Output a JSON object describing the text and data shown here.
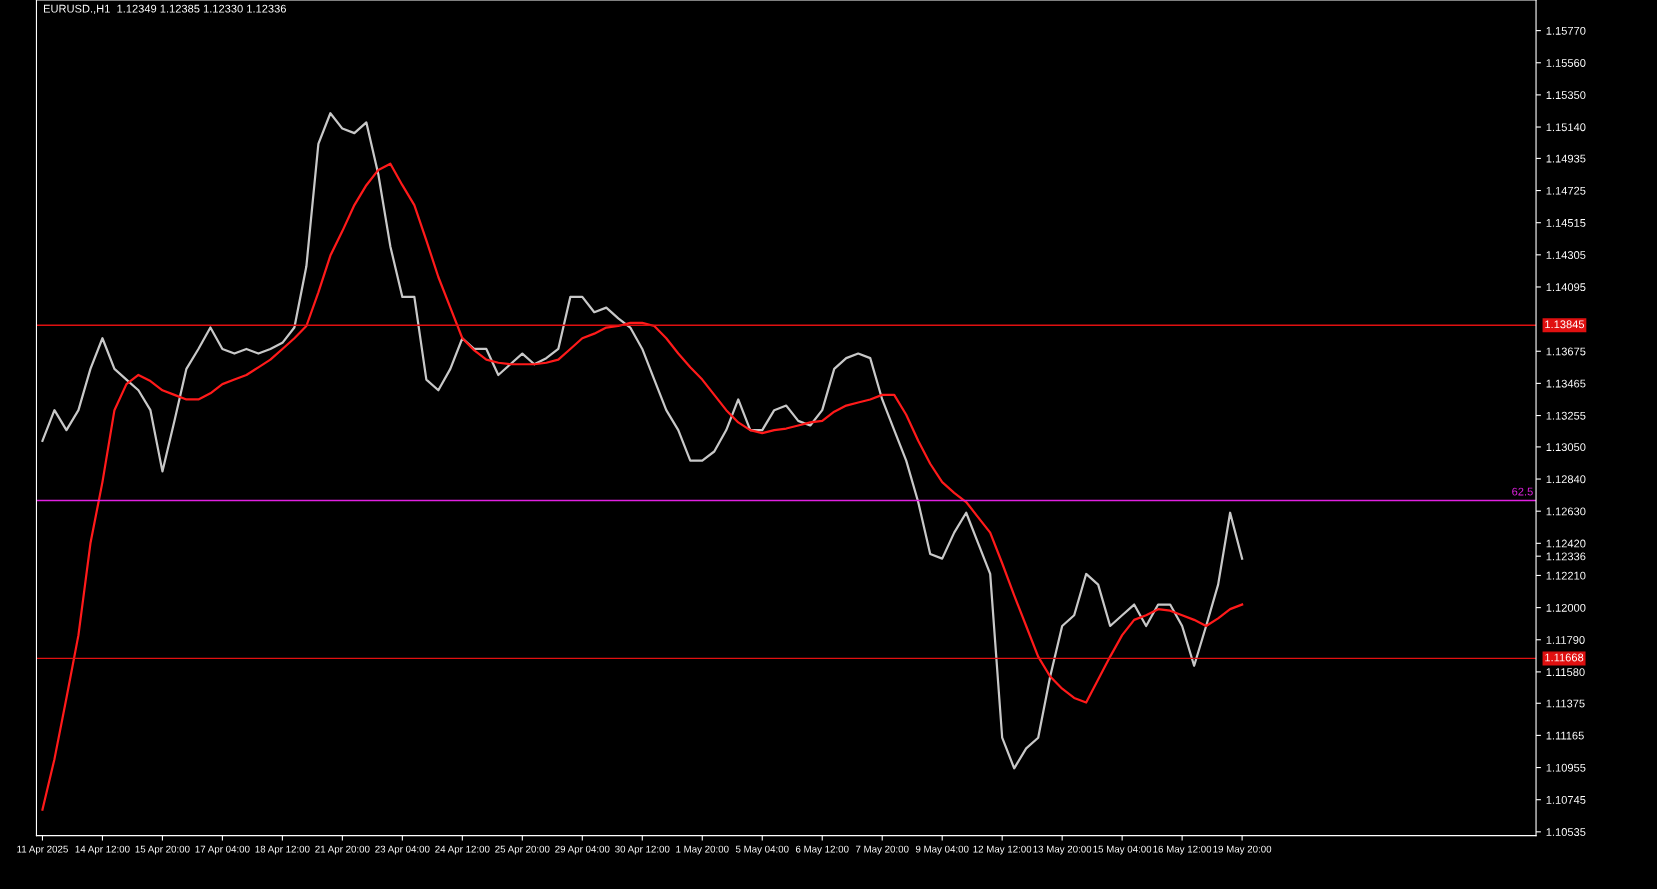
{
  "chart_data": {
    "type": "line",
    "title": "EURUSD.,H1  1.12349 1.12385 1.12330 1.12336",
    "categories": [
      "11 Apr 2025",
      null,
      null,
      null,
      null,
      "14 Apr 12:00",
      null,
      null,
      null,
      null,
      "15 Apr 20:00",
      null,
      null,
      null,
      null,
      "17 Apr 04:00",
      null,
      null,
      null,
      null,
      "18 Apr 12:00",
      null,
      null,
      null,
      null,
      "21 Apr 20:00",
      null,
      null,
      null,
      null,
      "23 Apr 04:00",
      null,
      null,
      null,
      null,
      "24 Apr 12:00",
      null,
      null,
      null,
      null,
      "25 Apr 20:00",
      null,
      null,
      null,
      null,
      "29 Apr 04:00",
      null,
      null,
      null,
      null,
      "30 Apr 12:00",
      null,
      null,
      null,
      null,
      "1 May 20:00",
      null,
      null,
      null,
      null,
      "5 May 04:00",
      null,
      null,
      null,
      null,
      "6 May 12:00",
      null,
      null,
      null,
      null,
      "7 May 20:00",
      null,
      null,
      null,
      null,
      "9 May 04:00",
      null,
      null,
      null,
      null,
      "12 May 12:00",
      null,
      null,
      null,
      null,
      "13 May 20:00",
      null,
      null,
      null,
      null,
      "15 May 04:00",
      null,
      null,
      null,
      null,
      "16 May 12:00",
      null,
      null,
      null,
      null,
      "19 May 20:00",
      null,
      null,
      null,
      null,
      null,
      null,
      null,
      null,
      null,
      null,
      null,
      null,
      null,
      null,
      null,
      null,
      null,
      null,
      null,
      null,
      null,
      null,
      null,
      null
    ],
    "series": [
      {
        "color": "#c8c8c8",
        "values": [
          1.1309,
          1.1329,
          1.1316,
          1.1329,
          1.1356,
          1.1376,
          1.1356,
          1.1349,
          1.1342,
          1.1329,
          1.1289,
          1.1322,
          1.1356,
          1.1369,
          1.1383,
          1.1369,
          1.1366,
          1.1369,
          1.1366,
          1.1369,
          1.1373,
          1.1383,
          1.1423,
          1.1503,
          1.1523,
          1.1513,
          1.151,
          1.1517,
          1.1483,
          1.1436,
          1.1403,
          1.1403,
          1.1349,
          1.1342,
          1.1356,
          1.1376,
          1.1369,
          1.1369,
          1.1352,
          1.1359,
          1.1366,
          1.1359,
          1.1363,
          1.1369,
          1.1403,
          1.1403,
          1.1393,
          1.1396,
          1.1389,
          1.1383,
          1.1369,
          1.1349,
          1.1329,
          1.1316,
          1.1296,
          1.1296,
          1.1302,
          1.1316,
          1.1336,
          1.1316,
          1.1316,
          1.1329,
          1.1332,
          1.1322,
          1.1319,
          1.1329,
          1.1356,
          1.1363,
          1.1366,
          1.1363,
          1.1336,
          1.1316,
          1.1296,
          1.1269,
          1.1235,
          1.1232,
          1.1249,
          1.1262,
          1.1242,
          1.1222,
          1.1115,
          1.1095,
          1.1108,
          1.1115,
          1.1155,
          1.1188,
          1.1195,
          1.1222,
          1.1215,
          1.1188,
          1.1195,
          1.1202,
          1.1188,
          1.1202,
          1.1202,
          1.1188,
          1.1162,
          1.1188,
          1.1215,
          1.1262,
          1.1232,
          null,
          null,
          null,
          null,
          null,
          null,
          null,
          null,
          null,
          null,
          null,
          null,
          null,
          null,
          null,
          null,
          null,
          null,
          null,
          null,
          null,
          null,
          null,
          null
        ]
      },
      {
        "color": "#ff1a1a",
        "values": [
          1.1068,
          1.1101,
          1.1141,
          1.1182,
          1.1242,
          1.1282,
          1.1329,
          1.1346,
          1.1352,
          1.1348,
          1.1342,
          1.1339,
          1.1336,
          1.1336,
          1.134,
          1.1346,
          1.1349,
          1.1352,
          1.1357,
          1.1362,
          1.1369,
          1.1376,
          1.1384,
          1.1406,
          1.143,
          1.1446,
          1.1463,
          1.1476,
          1.1486,
          1.149,
          1.1476,
          1.1463,
          1.144,
          1.1416,
          1.1396,
          1.1376,
          1.1368,
          1.1362,
          1.136,
          1.1359,
          1.1359,
          1.1359,
          1.136,
          1.1362,
          1.1369,
          1.1376,
          1.1379,
          1.1383,
          1.1384,
          1.1386,
          1.1386,
          1.1384,
          1.1376,
          1.1366,
          1.1357,
          1.1349,
          1.1339,
          1.1329,
          1.1321,
          1.1316,
          1.1314,
          1.1316,
          1.1317,
          1.1319,
          1.1321,
          1.1322,
          1.1328,
          1.1332,
          1.1334,
          1.1336,
          1.1339,
          1.1339,
          1.1326,
          1.1309,
          1.1294,
          1.1282,
          1.1275,
          1.1269,
          1.1259,
          1.1249,
          1.1229,
          1.1208,
          1.1188,
          1.1168,
          1.1155,
          1.1147,
          1.1141,
          1.1138,
          1.1153,
          1.1168,
          1.1182,
          1.1192,
          1.1195,
          1.1199,
          1.1198,
          1.1195,
          1.1192,
          1.1188,
          1.1193,
          1.1199,
          1.1202,
          null,
          null,
          null,
          null,
          null,
          null,
          null,
          null,
          null,
          null,
          null,
          null,
          null,
          null,
          null,
          null,
          null,
          null,
          null,
          null,
          null,
          null,
          null,
          null
        ]
      }
    ],
    "ylim": [
      1.1051,
      1.1597
    ],
    "yticks": [
      {
        "value": 1.1577,
        "label": "1.15770"
      },
      {
        "value": 1.1556,
        "label": "1.15560"
      },
      {
        "value": 1.1535,
        "label": "1.15350"
      },
      {
        "value": 1.1514,
        "label": "1.15140"
      },
      {
        "value": 1.14935,
        "label": "1.14935"
      },
      {
        "value": 1.14725,
        "label": "1.14725"
      },
      {
        "value": 1.14515,
        "label": "1.14515"
      },
      {
        "value": 1.14305,
        "label": "1.14305"
      },
      {
        "value": 1.14095,
        "label": "1.14095"
      },
      {
        "value": 1.13675,
        "label": "1.13675"
      },
      {
        "value": 1.13465,
        "label": "1.13465"
      },
      {
        "value": 1.13255,
        "label": "1.13255"
      },
      {
        "value": 1.1305,
        "label": "1.13050"
      },
      {
        "value": 1.1284,
        "label": "1.12840"
      },
      {
        "value": 1.1263,
        "label": "1.12630"
      },
      {
        "value": 1.1242,
        "label": "1.12420"
      },
      {
        "value": 1.12336,
        "label": "1.12336"
      },
      {
        "value": 1.1221,
        "label": "1.12210"
      },
      {
        "value": 1.12,
        "label": "1.12000"
      },
      {
        "value": 1.1179,
        "label": "1.11790"
      },
      {
        "value": 1.1158,
        "label": "1.11580"
      },
      {
        "value": 1.11375,
        "label": "1.11375"
      },
      {
        "value": 1.11165,
        "label": "1.11165"
      },
      {
        "value": 1.10955,
        "label": "1.10955"
      },
      {
        "value": 1.10745,
        "label": "1.10745"
      },
      {
        "value": 1.10535,
        "label": "1.10535"
      }
    ],
    "ref_lines": [
      {
        "axis": "y",
        "value": 1.13845,
        "label": "1.13845",
        "color": "#e01010"
      },
      {
        "axis": "y",
        "value": 1.11668,
        "label": "1.11668",
        "color": "#e01010"
      },
      {
        "axis": "y",
        "value": 1.127,
        "color": "#e020e0"
      }
    ],
    "annotations": [
      {
        "text": "62.5",
        "y": 1.127
      }
    ],
    "grid": false,
    "legend": false
  }
}
